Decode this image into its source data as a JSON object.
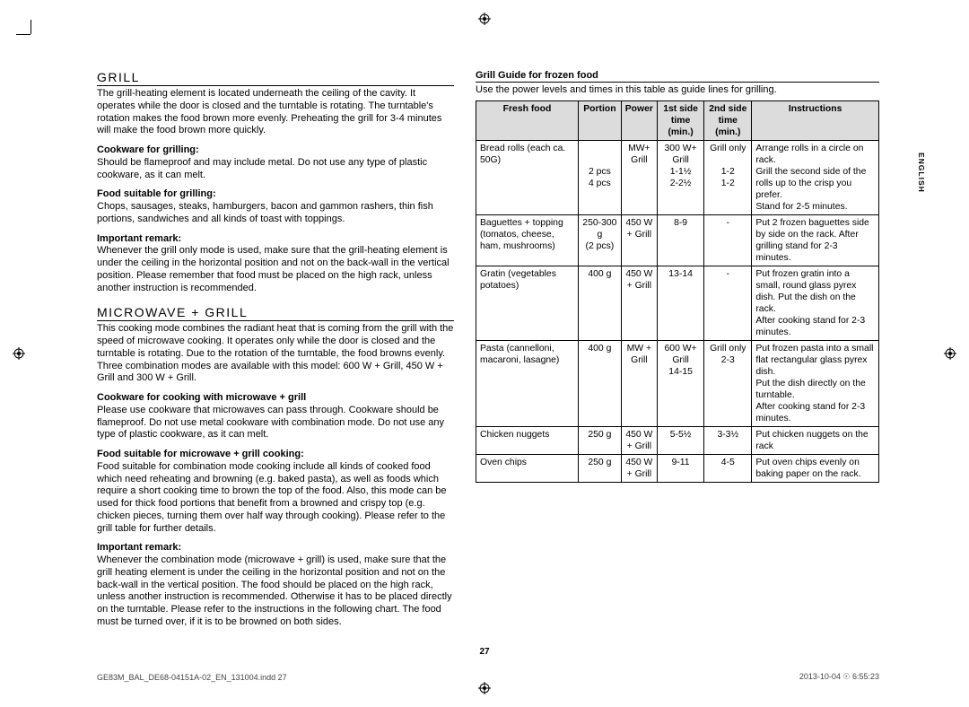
{
  "side_label": "ENGLISH",
  "page_number": "27",
  "footer_left": "GE83M_BAL_DE68-04151A-02_EN_131004.indd   27",
  "footer_right": "2013-10-04   ☉ 6:55:23",
  "left": {
    "h_grill": "GRILL",
    "p_grill": "The grill-heating element is located underneath the ceiling of the cavity. It operates while the door is closed and the turntable is rotating. The turntable's rotation makes the food brown more evenly. Preheating the grill for 3-4 minutes will make the food brown more quickly.",
    "s_cookware": "Cookware for grilling:",
    "p_cookware": "Should be flameproof and may include metal. Do not use any type of plastic cookware, as it can melt.",
    "s_food": "Food suitable for grilling:",
    "p_food": "Chops, sausages, steaks, hamburgers, bacon and gammon rashers, thin fish portions, sandwiches and all kinds of toast with toppings.",
    "s_remark1": "Important remark:",
    "p_remark1": "Whenever the grill only mode is used, make sure that the grill-heating element is under the ceiling in the horizontal position and not on the back-wall in the vertical position. Please remember that food must be placed on the high rack, unless another instruction is recommended.",
    "h_mwgrill": "MICROWAVE + GRILL",
    "p_mwgrill": "This cooking mode combines the radiant heat that is coming from the grill with the speed of microwave cooking. It operates only while the door is closed and the turntable is rotating. Due to the rotation of the turntable, the food browns evenly. Three combination modes are available with this model: 600 W + Grill, 450 W + Grill and 300 W + Grill.",
    "s_cookware2": "Cookware for cooking with microwave + grill",
    "p_cookware2": "Please use cookware that microwaves can pass through. Cookware should be flameproof. Do not use metal cookware with combination mode. Do not use any type of plastic cookware, as it can melt.",
    "s_food2": "Food suitable for microwave + grill cooking:",
    "p_food2": "Food suitable for combination mode cooking include all kinds of cooked food which need reheating and browning (e.g. baked pasta), as well as foods which require a short cooking time to brown the top of the food. Also, this mode can be used for thick food portions that benefit from a browned and crispy top (e.g. chicken pieces, turning them over half way through cooking). Please refer to the grill table for further details.",
    "s_remark2": "Important remark:",
    "p_remark2": "Whenever the combination mode (microwave + grill) is used, make sure that the grill heating element is under the ceiling in the horizontal position and not on the back-wall in the vertical position. The food should be placed on the high rack, unless another instruction is recommended. Otherwise it has to be placed directly on the turntable. Please refer to the instructions in the following chart. The food must be turned over, if it is to be browned on both sides."
  },
  "right": {
    "h_guide": "Grill Guide for frozen food",
    "p_guide": "Use the power levels and times in this table as guide lines for grilling.",
    "headers": [
      "Fresh food",
      "Portion",
      "Power",
      "1st side time (min.)",
      "2nd side time (min.)",
      "Instructions"
    ],
    "rows": [
      {
        "c1": "Bread rolls (each ca. 50G)",
        "c2": "\n\n2 pcs\n4 pcs",
        "c3": "MW+\nGrill",
        "c4": "300 W+\nGrill\n1-1½\n2-2½",
        "c5": "Grill only\n\n1-2\n1-2",
        "c6": "Arrange rolls in a circle on rack.\nGrill the second side of the rolls up to the crisp you prefer.\nStand for 2-5 minutes."
      },
      {
        "c1": "Baguettes + topping (tomatos, cheese, ham, mushrooms)",
        "c2": "250-300 g\n(2 pcs)",
        "c3": "450 W\n+ Grill",
        "c4": "8-9",
        "c5": "-",
        "c6": "Put 2 frozen baguettes side by side on the rack. After grilling stand for 2-3 minutes."
      },
      {
        "c1": "Gratin (vegetables potatoes)",
        "c2": "400 g",
        "c3": "450 W\n+ Grill",
        "c4": "13-14",
        "c5": "-",
        "c6": "Put frozen gratin into a small, round glass pyrex dish. Put the dish on the rack.\nAfter cooking stand for 2-3 minutes."
      },
      {
        "c1": "Pasta (cannelloni, macaroni, lasagne)",
        "c2": "400 g",
        "c3": "MW +\nGrill",
        "c4": "600 W+\nGrill\n14-15",
        "c5": "Grill only\n2-3",
        "c6": "Put frozen pasta into a small flat rectangular glass pyrex dish.\nPut the dish directly on the turntable.\nAfter cooking stand for 2-3 minutes."
      },
      {
        "c1": "Chicken nuggets",
        "c2": "250 g",
        "c3": "450 W\n+ Grill",
        "c4": "5-5½",
        "c5": "3-3½",
        "c6": "Put chicken nuggets on the rack"
      },
      {
        "c1": "Oven chips",
        "c2": "250 g",
        "c3": "450 W\n+ Grill",
        "c4": "9-11",
        "c5": "4-5",
        "c6": "Put oven chips evenly on baking paper on the rack."
      }
    ]
  }
}
